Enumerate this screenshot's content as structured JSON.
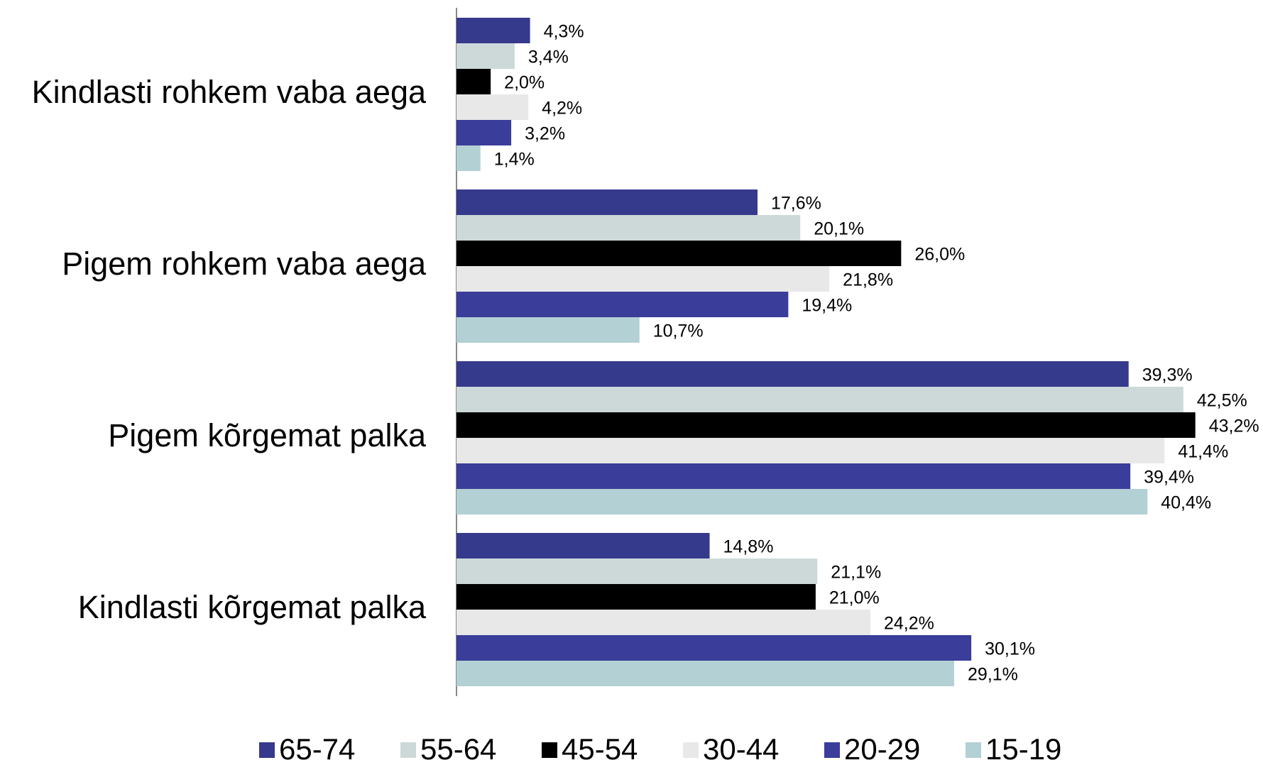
{
  "chart_data": {
    "type": "hbar",
    "categories": [
      "Kindlasti rohkem vaba aega",
      "Pigem rohkem vaba aega",
      "Pigem kõrgemat palka",
      "Kindlasti kõrgemat palka"
    ],
    "series": [
      {
        "name": "65-74",
        "color": "#353a8c",
        "values": [
          4.3,
          17.6,
          39.3,
          14.8
        ],
        "value_labels": [
          "4,3%",
          "17,6%",
          "39,3%",
          "14,8%"
        ]
      },
      {
        "name": "55-64",
        "color": "#cdd9d9",
        "values": [
          3.4,
          20.1,
          42.5,
          21.1
        ],
        "value_labels": [
          "3,4%",
          "20,1%",
          "42,5%",
          "21,1%"
        ]
      },
      {
        "name": "45-54",
        "color": "#000000",
        "values": [
          2.0,
          26.0,
          43.2,
          21.0
        ],
        "value_labels": [
          "2,0%",
          "26,0%",
          "43,2%",
          "21,0%"
        ]
      },
      {
        "name": "30-44",
        "color": "#e8e8e8",
        "values": [
          4.2,
          21.8,
          41.4,
          24.2
        ],
        "value_labels": [
          "4,2%",
          "21,8%",
          "41,4%",
          "24,2%"
        ]
      },
      {
        "name": "20-29",
        "color": "#3a3d9a",
        "values": [
          3.2,
          19.4,
          39.4,
          30.1
        ],
        "value_labels": [
          "3,2%",
          "19,4%",
          "39,4%",
          "30,1%"
        ]
      },
      {
        "name": "15-19",
        "color": "#b3d0d4",
        "values": [
          1.4,
          10.7,
          40.4,
          29.1
        ],
        "value_labels": [
          "1,4%",
          "10,7%",
          "40,4%",
          "29,1%"
        ]
      }
    ],
    "xlim": [
      0,
      45
    ],
    "legend": "bottom"
  }
}
